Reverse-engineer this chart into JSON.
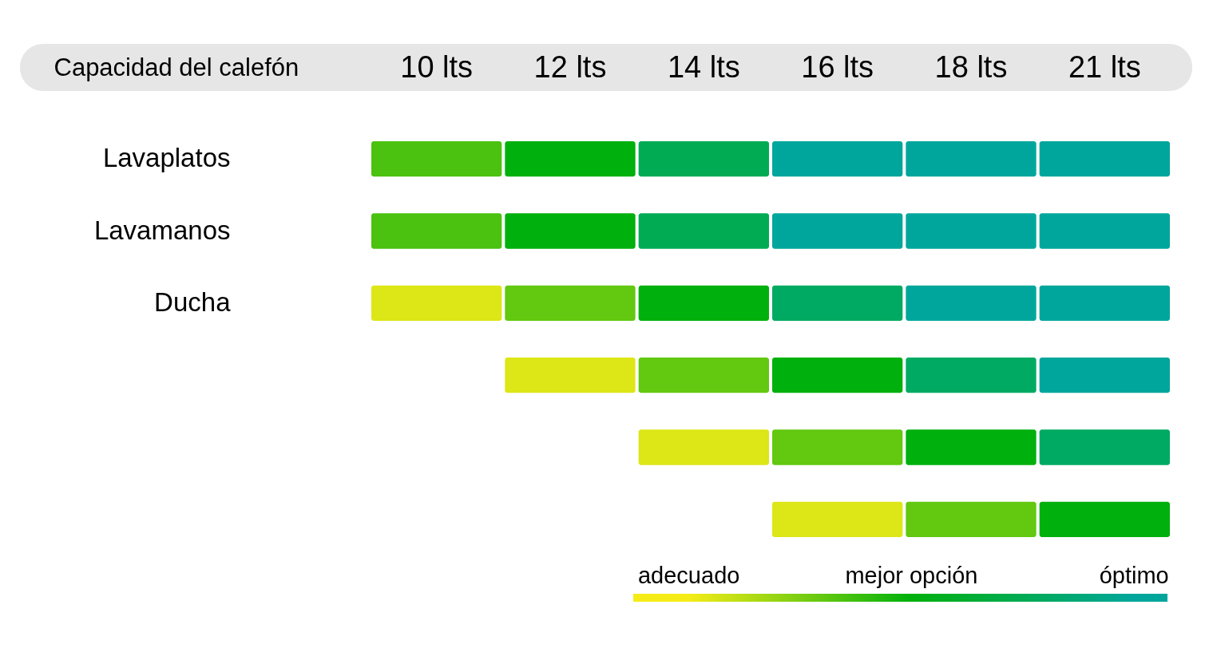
{
  "chart_data": {
    "type": "heatmap",
    "xlabel": "Capacidad del calefón",
    "categories": [
      "10 lts",
      "12 lts",
      "14 lts",
      "16 lts",
      "18 lts",
      "21 lts"
    ],
    "y_categories": [
      "Lavaplatos",
      "Lavamanos",
      "Ducha",
      null,
      null,
      null
    ],
    "cells": [
      [
        0.7,
        1,
        1.5,
        2,
        2,
        2
      ],
      [
        0.7,
        1,
        1.5,
        2,
        2,
        2
      ],
      [
        0.1,
        0.6,
        1,
        1.6,
        2,
        2
      ],
      [
        null,
        0.1,
        0.6,
        1,
        1.6,
        2
      ],
      [
        null,
        null,
        0.1,
        0.6,
        1,
        1.6
      ],
      [
        null,
        null,
        null,
        0.1,
        0.6,
        1
      ]
    ],
    "clim": [
      -0.25,
      2.15
    ],
    "cticks": [
      {
        "value": 0,
        "label": "adecuado"
      },
      {
        "value": 1,
        "label": "mejor opción"
      },
      {
        "value": 2,
        "label": "óptimo"
      }
    ]
  }
}
